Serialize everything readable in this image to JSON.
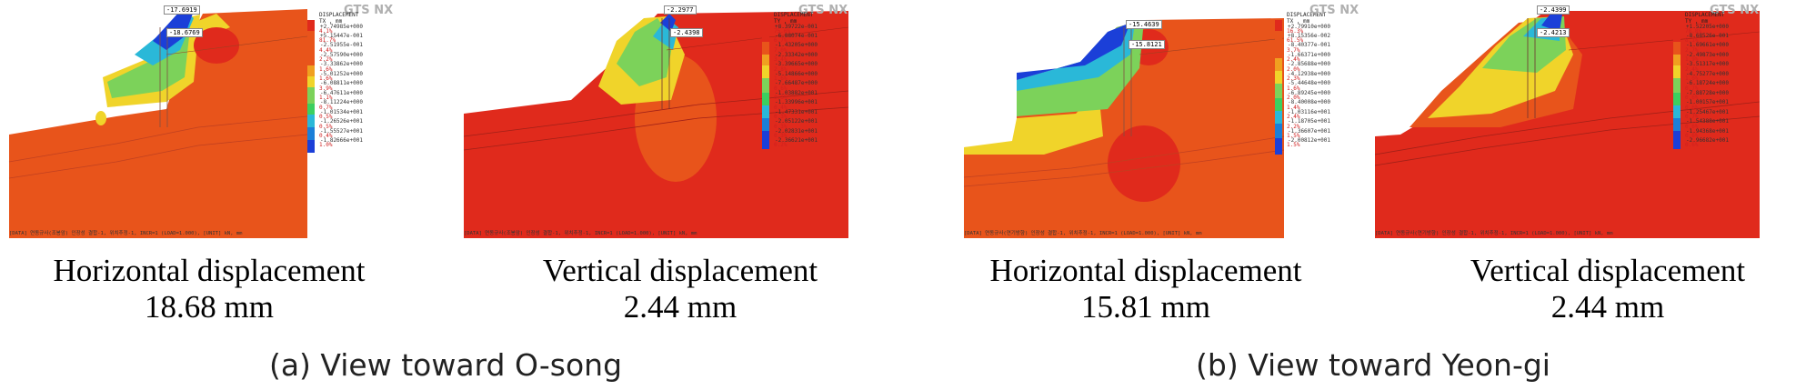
{
  "brand": "GTS NX",
  "legend_title_line1": "DISPLACEMENT",
  "legend_title_line2": "TX , mm",
  "legend_title_line2_v": "TY , mm",
  "panels": [
    {
      "id": "a-horizontal",
      "caption_title": "Horizontal displacement",
      "caption_value": "18.68 mm",
      "tag_top": "-17.6919",
      "tag_mid": "-18.6769",
      "legend_values": [
        "+2.74985e+000",
        "+5.15447e-001",
        "-2.51955e-001",
        "-2.57590e+000",
        "-3.33862e+000",
        "-5.01252e+000",
        "-6.08811e+000",
        "-6.47611e+000",
        "-8.11224e+000",
        "-1.01534e+001",
        "-1.26526e+001",
        "-1.55527e+001",
        "-1.82666e+001"
      ],
      "legend_pcts": [
        "4.1%",
        "81.7%",
        "4.4%",
        "2.2%",
        "1.6%",
        "1.6%",
        "3.9%",
        "1.1%",
        "0.7%",
        "0.5%",
        "0.5%",
        "0.4%",
        "1.0%"
      ],
      "footer": "[DATA] 연동규사(조봉암) 인장성 결합-1, 위치추정-1, INCR=1 (LOAD=1.000), [UNIT] kN, mm"
    },
    {
      "id": "a-vertical",
      "caption_title": "Vertical displacement",
      "caption_value": "2.44 mm",
      "tag_top": "-2.2977",
      "tag_mid": "-2.4398",
      "legend_values": [
        "+8.39722e-001",
        "-6.88074e-001",
        "-1.43205e+000",
        "-2.33342e+000",
        "-3.39665e+000",
        "-5.14866e+000",
        "-7.66487e+000",
        "-1.03882e+001",
        "-1.33996e+001",
        "-1.47331e+001",
        "-2.05122e+001",
        "-2.02831e+001",
        "-2.36621e+001"
      ],
      "legend_pcts": [
        "75.6%",
        "6.7%",
        "7.0%",
        "3.4%",
        "2.8%",
        "1.6%",
        "0.6%",
        "0.3%",
        "0.4%",
        "0.3%",
        "0.3%",
        "0.3%",
        "0.2%"
      ],
      "footer": "[DATA] 연동규사(조봉암) 인장성 결합-1, 위치추정-1, INCR=1 (LOAD=1.000), [UNIT] kN, mm"
    },
    {
      "id": "b-horizontal",
      "caption_title": "Horizontal displacement",
      "caption_value": "15.81 mm",
      "tag_top": "-15.4639",
      "tag_mid": "-15.8121",
      "legend_values": [
        "+2.79910e+000",
        "+8.15356e-002",
        "-8.40377e-001",
        "-1.66371e+000",
        "-2.85688e+000",
        "-4.12938e+000",
        "-5.44648e+000",
        "-6.89245e+000",
        "-8.40008e+000",
        "-1.03116e+001",
        "-1.18705e+001",
        "-1.36607e+001",
        "-2.00812e+001"
      ],
      "legend_pcts": [
        "16.3%",
        "61.5%",
        "3.7%",
        "2.4%",
        "2.0%",
        "2.3%",
        "1.6%",
        "2.0%",
        "1.4%",
        "2.4%",
        "2.2%",
        "1.5%",
        "1.5%"
      ],
      "footer": "[DATA] 연동규사(연기방향) 인장성 결합-1, 위치추정-1, INCR=1 (LOAD=1.000), [UNIT] kN, mm"
    },
    {
      "id": "b-vertical",
      "caption_title": "Vertical displacement",
      "caption_value": "2.44 mm",
      "tag_top": "-2.4399",
      "tag_mid": "-2.4213",
      "legend_values": [
        "+1.52205e+000",
        "-8.68526e-001",
        "-1.69661e+000",
        "-2.49873e+000",
        "-3.51317e+000",
        "-4.75277e+000",
        "-6.18724e+000",
        "-7.88728e+000",
        "-1.00157e+001",
        "-1.25467e+001",
        "-1.54388e+001",
        "-1.94368e+001",
        "-2.96682e+001"
      ],
      "legend_pcts": [
        "78.8%",
        "8.1%",
        "2.7%",
        "1.9%",
        "2.4%",
        "1.0%",
        "0.7%",
        "0.6%",
        "0.6%",
        "0.7%",
        "0.6%",
        "0.6%",
        "0.6%"
      ],
      "footer": "[DATA] 연동규사(연기방향) 인장성 결합-1, 위치추정-1, INCR=1 (LOAD=1.000), [UNIT] kN, mm"
    }
  ],
  "group_labels": [
    "(a) View toward O-song",
    "(b) View toward Yeon-gi"
  ],
  "colors": {
    "orange": "#e8541b",
    "red": "#e02a1c",
    "yellow": "#f0d42a",
    "green": "#7cd25a",
    "cyan": "#2ab8d8",
    "blue": "#1b3fd8"
  }
}
